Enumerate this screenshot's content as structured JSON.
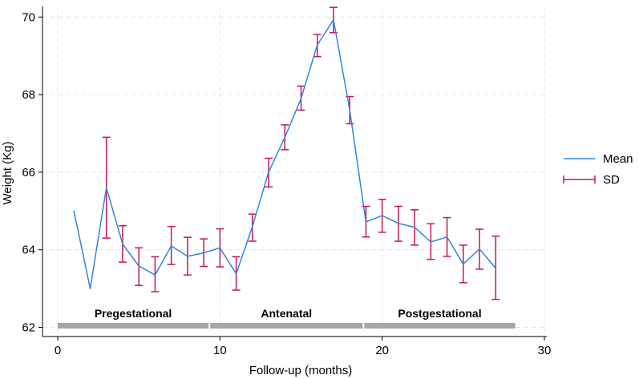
{
  "chart_data": {
    "type": "line",
    "title": "",
    "xlabel": "Follow-up (months)",
    "ylabel": "Weight (Kg)",
    "xlim": [
      0,
      30
    ],
    "ylim": [
      62,
      70.3
    ],
    "x_ticks": [
      0,
      10,
      20,
      30
    ],
    "y_ticks": [
      62,
      64,
      66,
      68,
      70
    ],
    "x_tick_labels": [
      "0",
      "10",
      "20",
      "30"
    ],
    "y_tick_labels": [
      "62",
      "64",
      "66",
      "68",
      "70"
    ],
    "grid": true,
    "legend_position": "right",
    "series": [
      {
        "name": "Mean",
        "color": "#2e86de",
        "x": [
          1,
          2,
          3,
          4,
          5,
          6,
          7,
          8,
          9,
          10,
          11,
          12,
          13,
          14,
          15,
          16,
          17,
          18,
          19,
          20,
          21,
          22,
          23,
          24,
          25,
          26,
          27
        ],
        "values": [
          65.0,
          63.0,
          65.6,
          64.15,
          63.58,
          63.35,
          64.1,
          63.83,
          63.92,
          64.05,
          63.38,
          64.6,
          66.0,
          66.9,
          67.9,
          69.28,
          69.93,
          67.6,
          64.72,
          64.88,
          64.68,
          64.58,
          64.2,
          64.33,
          63.63,
          64.02,
          63.52
        ]
      },
      {
        "name": "SD",
        "color": "#c2185b",
        "x": [
          3,
          4,
          5,
          6,
          7,
          8,
          9,
          10,
          11,
          12,
          13,
          14,
          15,
          16,
          17,
          18,
          19,
          20,
          21,
          22,
          23,
          24,
          25,
          26,
          27
        ],
        "lower": [
          64.3,
          63.68,
          63.08,
          62.92,
          63.62,
          63.35,
          63.57,
          63.56,
          62.96,
          64.22,
          65.62,
          66.58,
          67.6,
          68.98,
          69.6,
          67.25,
          64.33,
          64.45,
          64.22,
          64.12,
          63.75,
          63.83,
          63.15,
          63.5,
          62.72
        ],
        "upper": [
          66.9,
          64.62,
          64.05,
          63.82,
          64.6,
          64.32,
          64.28,
          64.54,
          63.82,
          64.92,
          66.36,
          67.22,
          68.22,
          69.55,
          70.25,
          67.95,
          65.12,
          65.3,
          65.12,
          65.03,
          64.67,
          64.83,
          64.12,
          64.53,
          64.35
        ]
      }
    ],
    "periods": [
      {
        "label": "Pregestational",
        "start": 0,
        "end": 9.3
      },
      {
        "label": "Antenatal",
        "start": 9.4,
        "end": 18.8
      },
      {
        "label": "Postgestational",
        "start": 18.9,
        "end": 28.2
      }
    ],
    "period_bar_color": "#a6a6a6"
  },
  "legend": {
    "items": [
      {
        "label": "Mean"
      },
      {
        "label": "SD"
      }
    ]
  }
}
